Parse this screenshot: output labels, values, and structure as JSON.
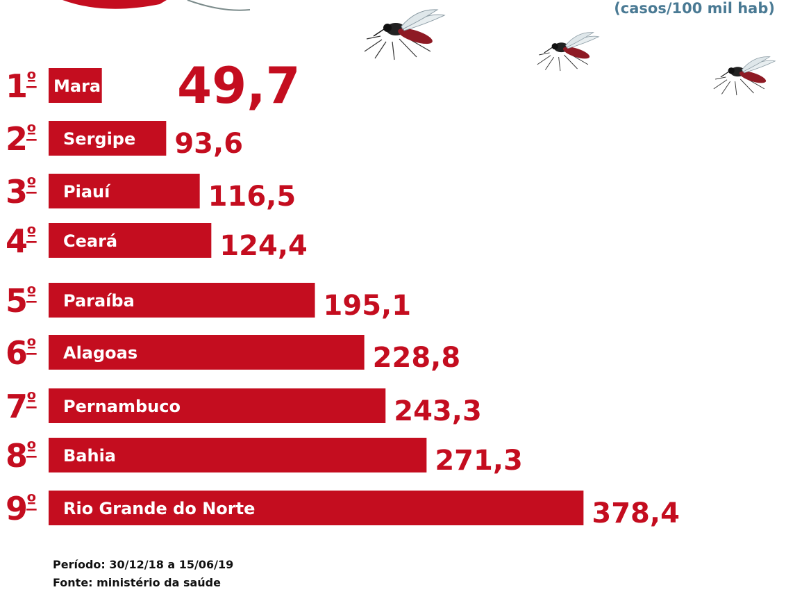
{
  "unit_label": "(casos/100 mil hab)",
  "footer": {
    "period": "Período: 30/12/18 a 15/06/19",
    "source": "Fonte: ministério da saúde"
  },
  "colors": {
    "bar": "#c40d1f",
    "value": "#c40d1f",
    "unit_label": "#4a7a94"
  },
  "icons": [
    "mosquito-icon",
    "mosquito-icon",
    "mosquito-icon"
  ],
  "chart_data": {
    "type": "bar",
    "orientation": "horizontal",
    "categories": [
      "Maranhão",
      "Sergipe",
      "Piauí",
      "Ceará",
      "Paraíba",
      "Alagoas",
      "Pernambuco",
      "Bahia",
      "Rio Grande do Norte"
    ],
    "ranks": [
      "1º",
      "2º",
      "3º",
      "4º",
      "5º",
      "6º",
      "7º",
      "8º",
      "9º"
    ],
    "values": [
      49.7,
      93.6,
      116.5,
      124.4,
      195.1,
      228.8,
      243.3,
      271.3,
      378.4
    ],
    "value_labels": [
      "49,7",
      "93,6",
      "116,5",
      "124,4",
      "195,1",
      "228,8",
      "243,3",
      "271,3",
      "378,4"
    ],
    "title": "",
    "xlabel": "",
    "ylabel": "(casos/100 mil hab)",
    "grid": false,
    "legend": "none"
  }
}
